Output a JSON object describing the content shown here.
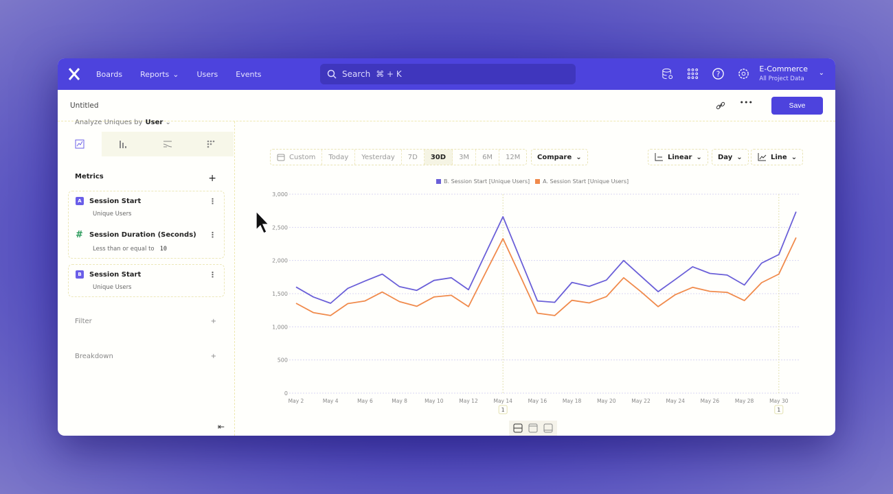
{
  "nav": {
    "items": [
      "Boards",
      "Reports",
      "Users",
      "Events"
    ],
    "search": "Search",
    "shortcut": "⌘ + K",
    "project": "E-Commerce",
    "project_sub": "All Project Data",
    "icons": [
      "database-icon",
      "apps-grid-icon",
      "help-icon",
      "settings-icon"
    ]
  },
  "subheader": {
    "title": "Untitled",
    "save": "Save",
    "more": "•••"
  },
  "left": {
    "analyze_label": "Analyze Uniques by",
    "analyze_value": "User",
    "metrics_label": "Metrics",
    "metrics": [
      {
        "badge": "A",
        "name": "Session Start",
        "desc": "Unique Users",
        "filter": {
          "name": "Session Duration (Seconds)",
          "desc": "Less than or equal to",
          "value": "10"
        }
      },
      {
        "badge": "B",
        "name": "Session Start",
        "desc": "Unique Users"
      }
    ],
    "filter_label": "Filter",
    "breakdown_label": "Breakdown"
  },
  "toolbar": {
    "ranges": [
      "Custom",
      "Today",
      "Yesterday",
      "7D",
      "30D",
      "3M",
      "6M",
      "12M"
    ],
    "selected": "30D",
    "compare": "Compare",
    "scale": "Linear",
    "interval": "Day",
    "chart_type": "Line"
  },
  "colors": {
    "accent": "#4d43dd",
    "seriesB": "#6a5fd8",
    "seriesA": "#f08a4b"
  },
  "chart_data": {
    "type": "line",
    "ylim": [
      0,
      3000
    ],
    "yticks": [
      "0",
      "500",
      "1,000",
      "1,500",
      "2,000",
      "2,500",
      "3,000"
    ],
    "xticks": [
      "May 2",
      "May 4",
      "May 6",
      "May 8",
      "May 10",
      "May 12",
      "May 14",
      "May 16",
      "May 18",
      "May 20",
      "May 22",
      "May 24",
      "May 26",
      "May 28",
      "May 30"
    ],
    "x": [
      "May 2",
      "May 3",
      "May 4",
      "May 5",
      "May 6",
      "May 7",
      "May 8",
      "May 9",
      "May 10",
      "May 11",
      "May 12",
      "May 13",
      "May 14",
      "May 15",
      "May 16",
      "May 17",
      "May 18",
      "May 19",
      "May 20",
      "May 21",
      "May 22",
      "May 23",
      "May 24",
      "May 25",
      "May 26",
      "May 27",
      "May 28",
      "May 29",
      "May 30",
      "May 31"
    ],
    "series": [
      {
        "name": "B. Session Start [Unique Users]",
        "values": [
          1600,
          1450,
          1355,
          1580,
          1690,
          1795,
          1605,
          1550,
          1700,
          1740,
          1560,
          2110,
          2660,
          2025,
          1390,
          1370,
          1670,
          1610,
          1705,
          2000,
          1765,
          1530,
          1715,
          1905,
          1805,
          1780,
          1630,
          1960,
          2090,
          2735
        ]
      },
      {
        "name": "A. Session Start [Unique Users]",
        "values": [
          1355,
          1215,
          1170,
          1350,
          1390,
          1525,
          1380,
          1310,
          1450,
          1475,
          1305,
          1820,
          2330,
          1770,
          1205,
          1170,
          1400,
          1360,
          1455,
          1740,
          1530,
          1305,
          1485,
          1595,
          1535,
          1520,
          1395,
          1665,
          1795,
          2345
        ]
      }
    ],
    "annotations": [
      {
        "x": "May 14",
        "label": "1"
      },
      {
        "x": "May 30",
        "label": "1"
      }
    ],
    "grid": true,
    "legend": "top-center"
  }
}
